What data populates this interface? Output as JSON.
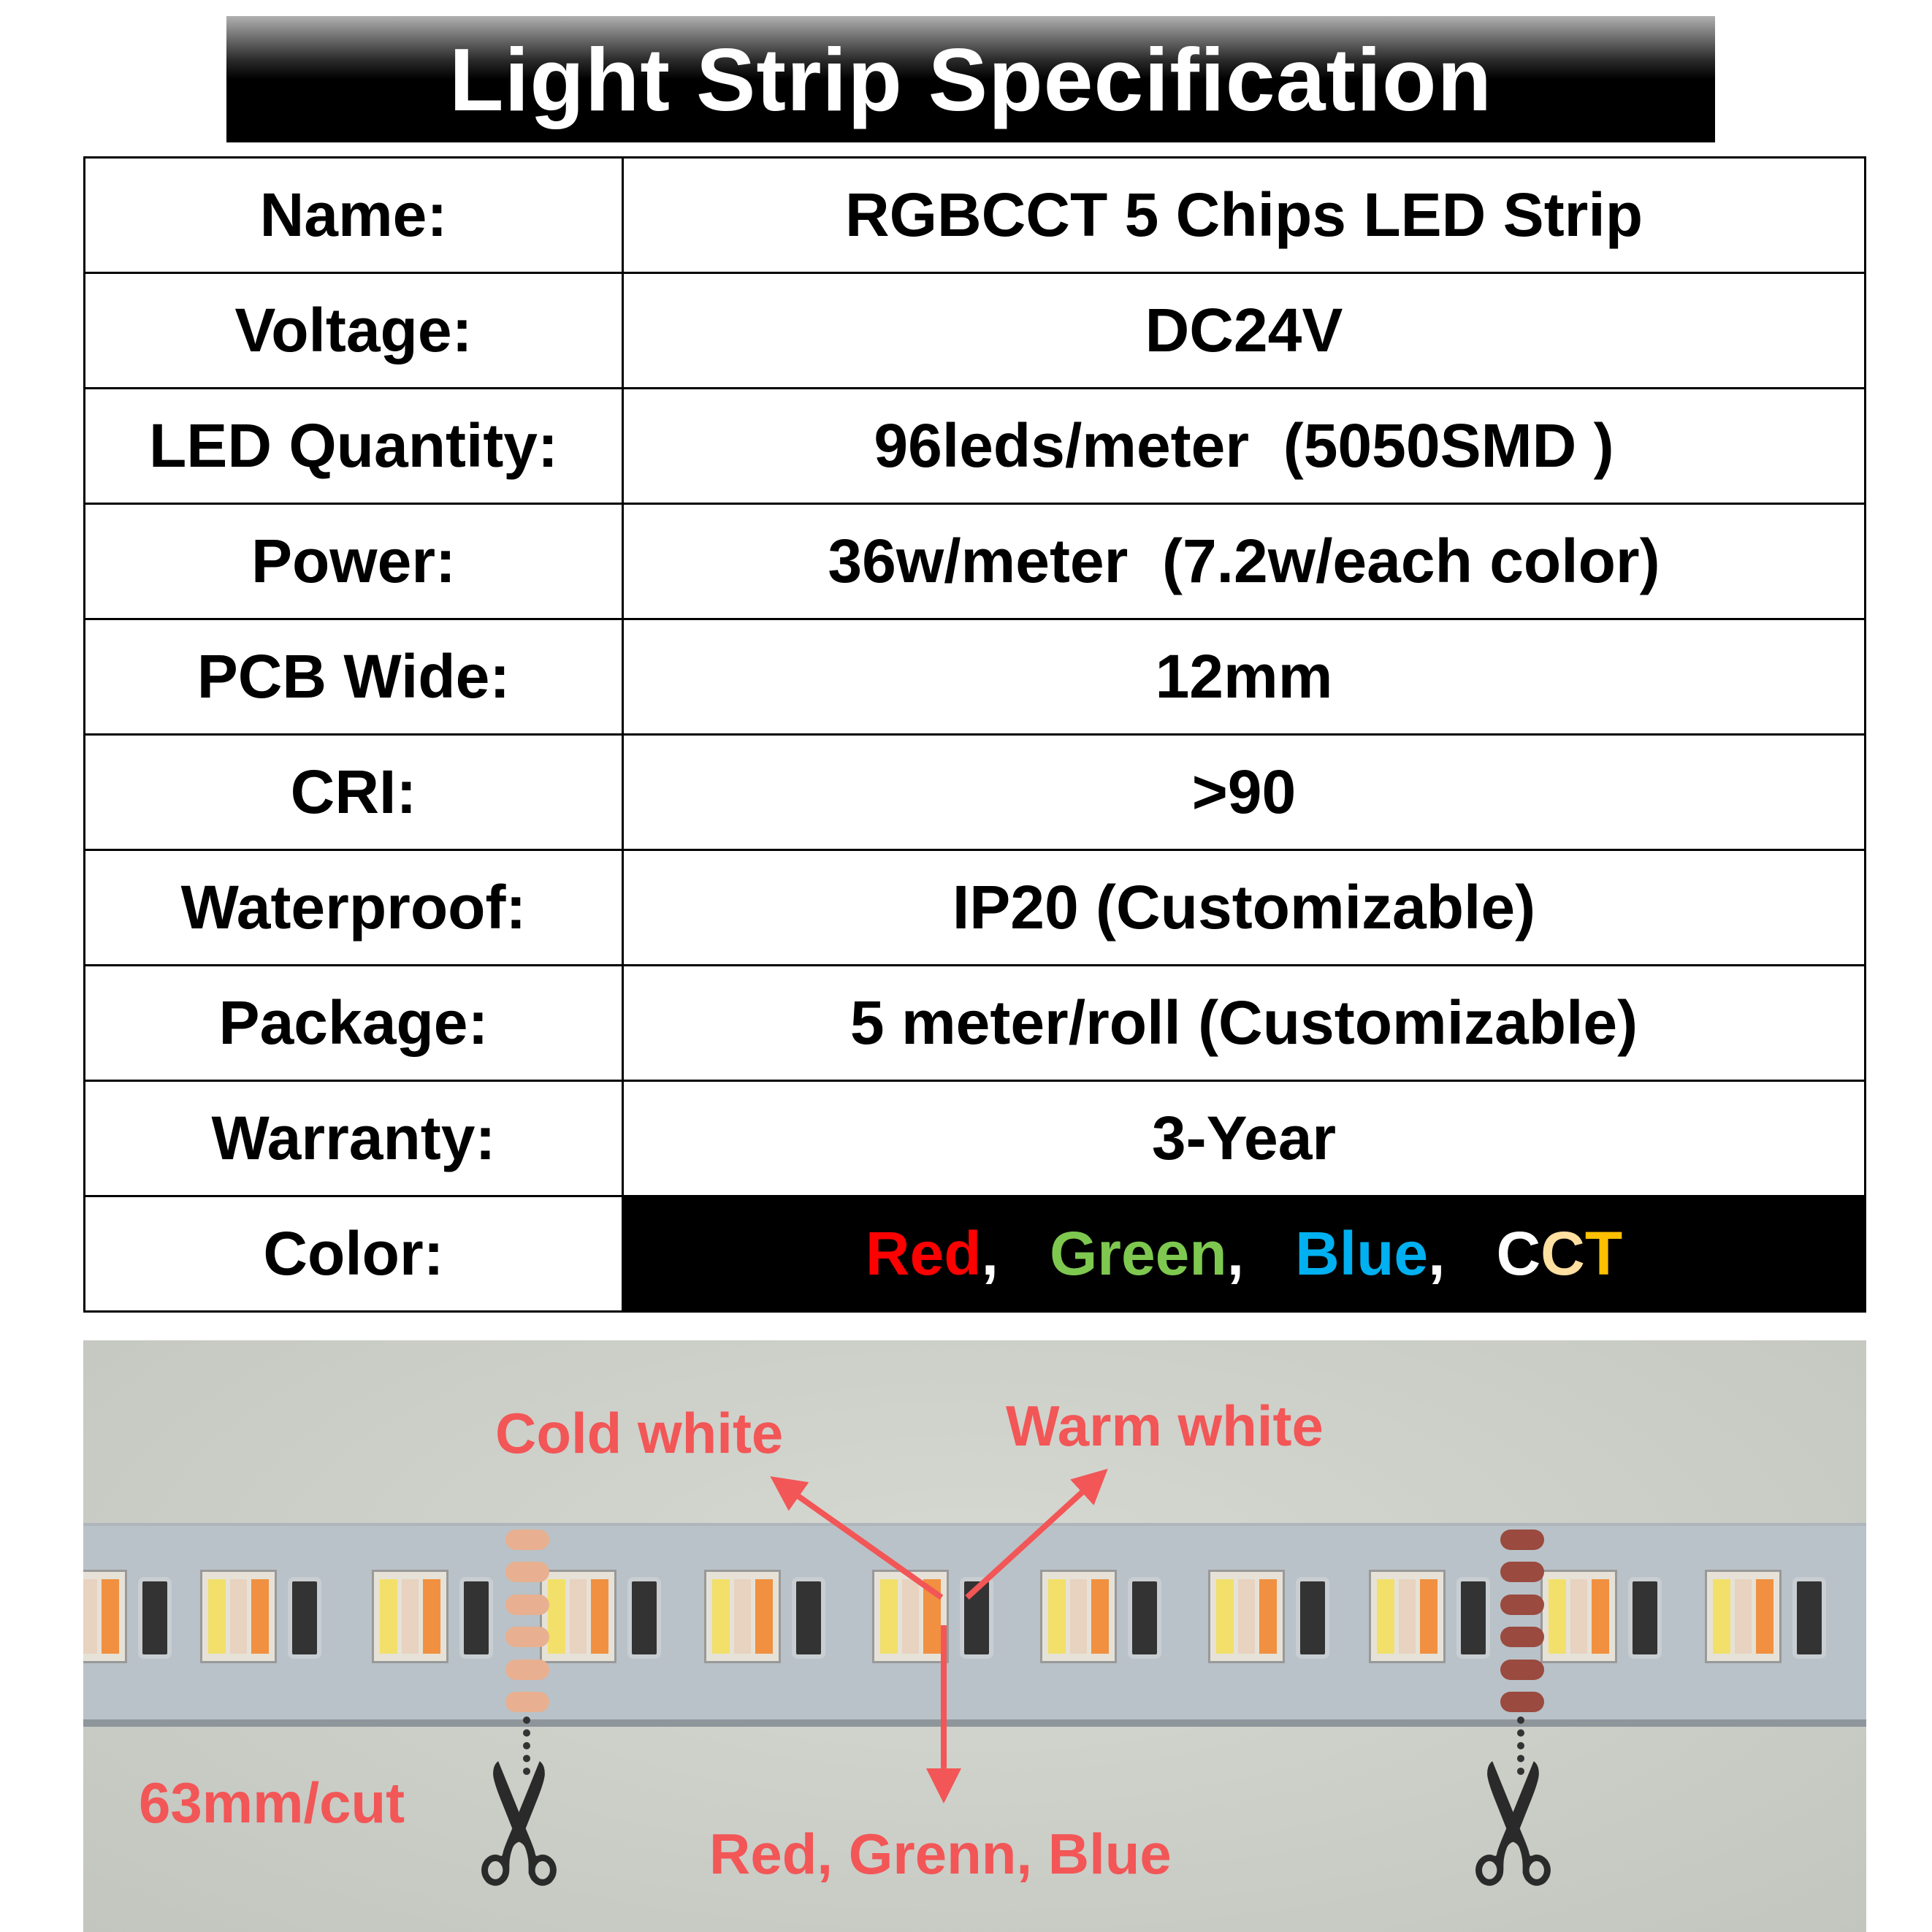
{
  "title": "Light Strip Specification",
  "spec_rows": [
    {
      "label": "Name:",
      "value": "RGBCCT 5 Chips LED Strip"
    },
    {
      "label": "Voltage:",
      "value": "DC24V"
    },
    {
      "label": "LED Quantity:",
      "value": "96leds/meter  (5050SMD )"
    },
    {
      "label": "Power:",
      "value": "36w/meter  (7.2w/each color)"
    },
    {
      "label": "PCB Wide:",
      "value": "12mm"
    },
    {
      "label": "CRI:",
      "value": ">90"
    },
    {
      "label": "Waterproof:",
      "value": "IP20 (Customizable)"
    },
    {
      "label": "Package:",
      "value": "5 meter/roll (Customizable)"
    },
    {
      "label": "Warranty:",
      "value": "3-Year"
    }
  ],
  "color_row": {
    "label": "Color:",
    "red": "Red",
    "green": "Green",
    "blue": "Blue",
    "cct_c": "C",
    "cct_c2": "C",
    "cct_t": "T",
    "sep": ",",
    "colors": {
      "red": "#ff0000",
      "green": "#7ec850",
      "blue": "#00b0f0",
      "cct_c": "#ffffff",
      "cct_c2": "#ffe0a0",
      "cct_t": "#ffc000"
    }
  },
  "photo": {
    "cold_white": "Cold white",
    "warm_white": "Warm white",
    "rgb": "Red, Grenn, Blue",
    "cut": "63mm/cut",
    "label_color": "#f25656",
    "scissors_icon": "scissors-icon"
  }
}
